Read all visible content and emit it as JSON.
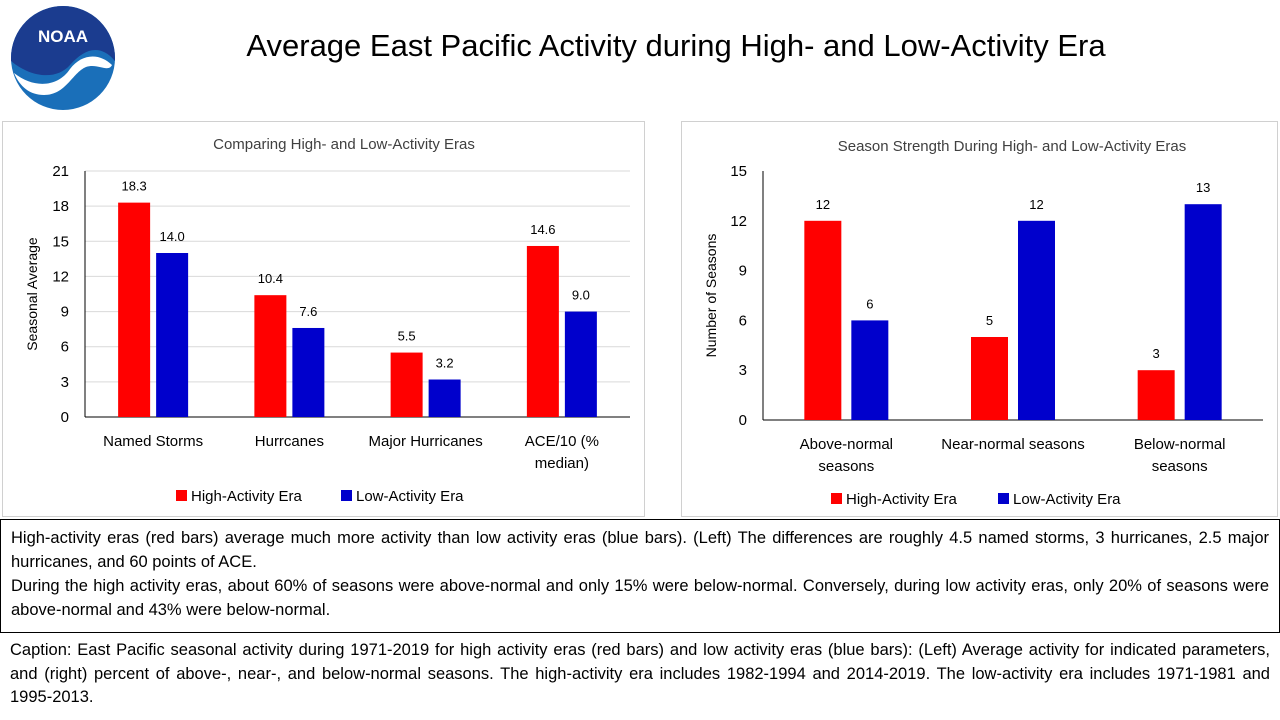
{
  "header": {
    "logo_text": "NOAA",
    "title": "Average East Pacific Activity during High- and Low-Activity Era"
  },
  "colors": {
    "high": "#ff0000",
    "low": "#0000cc",
    "noaa_blue": "#1a6fb9",
    "noaa_navy": "#1b3c8f"
  },
  "chart_data": [
    {
      "type": "bar",
      "title": "Comparing High- and Low-Activity Eras",
      "xlabel": "",
      "ylabel": "Seasonal Average",
      "ylim": [
        0,
        21
      ],
      "yticks": [
        0,
        3,
        6,
        9,
        12,
        15,
        18,
        21
      ],
      "grid": true,
      "legend": "bottom",
      "categories": [
        [
          "Named Storms"
        ],
        [
          "Hurrcanes"
        ],
        [
          "Major Hurricanes"
        ],
        [
          "ACE/10 (%",
          "median)"
        ]
      ],
      "series": [
        {
          "name": "High-Activity Era",
          "color": "#ff0000",
          "values": [
            18.3,
            10.4,
            5.5,
            14.6
          ],
          "labels": [
            "18.3",
            "10.4",
            "5.5",
            "14.6"
          ]
        },
        {
          "name": "Low-Activity Era",
          "color": "#0000cc",
          "values": [
            14.0,
            7.6,
            3.2,
            9.0
          ],
          "labels": [
            "14.0",
            "7.6",
            "3.2",
            "9.0"
          ]
        }
      ]
    },
    {
      "type": "bar",
      "title": "Season Strength During High- and Low-Activity Eras",
      "xlabel": "",
      "ylabel": "Number of Seasons",
      "ylim": [
        0,
        15
      ],
      "yticks": [
        0,
        3,
        6,
        9,
        12,
        15
      ],
      "grid": false,
      "legend": "bottom",
      "categories": [
        [
          "Above-normal",
          "seasons"
        ],
        [
          "Near-normal seasons"
        ],
        [
          "Below-normal",
          "seasons"
        ]
      ],
      "series": [
        {
          "name": "High-Activity Era",
          "color": "#ff0000",
          "values": [
            12,
            5,
            3
          ],
          "labels": [
            "12",
            "5",
            "3"
          ]
        },
        {
          "name": "Low-Activity Era",
          "color": "#0000cc",
          "values": [
            6,
            12,
            13
          ],
          "labels": [
            "6",
            "12",
            "13"
          ]
        }
      ]
    }
  ],
  "summary": {
    "paragraph1": "High-activity eras (red bars) average much more activity than low activity eras (blue bars). (Left) The differences are roughly 4.5 named storms, 3 hurricanes, 2.5 major hurricanes, and 60 points of ACE.",
    "paragraph2": "During the high activity eras, about 60% of seasons were above-normal and only 15% were below-normal. Conversely, during low activity eras, only 20% of seasons were above-normal and 43% were below-normal."
  },
  "caption": "Caption: East Pacific seasonal activity during 1971-2019 for high activity eras (red bars) and low activity eras (blue bars): (Left) Average activity for indicated parameters, and (right) percent of above-, near-, and below-normal seasons. The high-activity era includes 1982-1994 and 2014-2019. The low-activity era includes 1971-1981 and 1995-2013."
}
